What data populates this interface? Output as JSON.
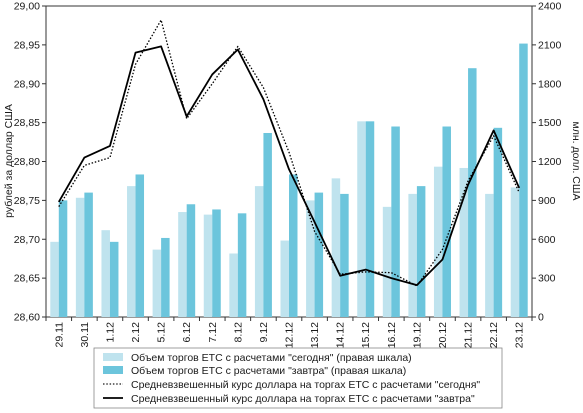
{
  "chart_data": {
    "type": "bar",
    "categories": [
      "29.11",
      "30.11",
      "1.12",
      "2.12",
      "5.12",
      "6.12",
      "7.12",
      "8.12",
      "9.12",
      "12.12",
      "13.12",
      "14.12",
      "15.12",
      "16.12",
      "19.12",
      "20.12",
      "21.12",
      "22.12",
      "23.12"
    ],
    "bar_series": [
      {
        "name": "Объем торгов ЕТС с расчетами \"сегодня\" (правая шкала)",
        "color": "#bfe3ee",
        "values": [
          580,
          920,
          670,
          1010,
          520,
          810,
          790,
          490,
          1010,
          590,
          900,
          1070,
          1510,
          850,
          950,
          1160,
          1150,
          950,
          1000
        ]
      },
      {
        "name": "Объем торгов ЕТС с расчетами \"завтра\" (правая шкала)",
        "color": "#6cc5dc",
        "values": [
          900,
          960,
          580,
          1100,
          610,
          870,
          830,
          800,
          1420,
          1100,
          960,
          950,
          1510,
          1470,
          1010,
          1470,
          1920,
          1460,
          2110
        ]
      }
    ],
    "line_series": [
      {
        "name": "Средневзвешенный курс доллара на торгах ЕТС с расчетами \"сегодня\"",
        "style": "dotted",
        "values": [
          28.742,
          28.795,
          28.805,
          28.925,
          28.982,
          28.855,
          28.9,
          28.948,
          28.895,
          28.812,
          28.71,
          28.655,
          28.658,
          28.657,
          28.64,
          28.687,
          28.775,
          28.833,
          28.76
        ]
      },
      {
        "name": "Средневзвешенный курс доллара на торгах ЕТС с расчетами \"завтра\"",
        "style": "solid",
        "values": [
          28.748,
          28.805,
          28.82,
          28.94,
          28.948,
          28.858,
          28.912,
          28.944,
          28.88,
          28.79,
          28.722,
          28.653,
          28.661,
          28.65,
          28.641,
          28.674,
          28.77,
          28.84,
          28.766
        ]
      }
    ],
    "left_axis": {
      "label": "рублей за доллар США",
      "range": [
        28.6,
        29.0
      ],
      "ticks": [
        "28,60",
        "28,65",
        "28,70",
        "28,75",
        "28,80",
        "28,85",
        "28,90",
        "28,95",
        "29,00"
      ]
    },
    "right_axis": {
      "label": "млн. долл. США",
      "range": [
        0,
        2400
      ],
      "ticks": [
        "0",
        "300",
        "600",
        "900",
        "1200",
        "1500",
        "1800",
        "2100",
        "2400"
      ]
    },
    "grid": false,
    "legend_position": "bottom"
  }
}
